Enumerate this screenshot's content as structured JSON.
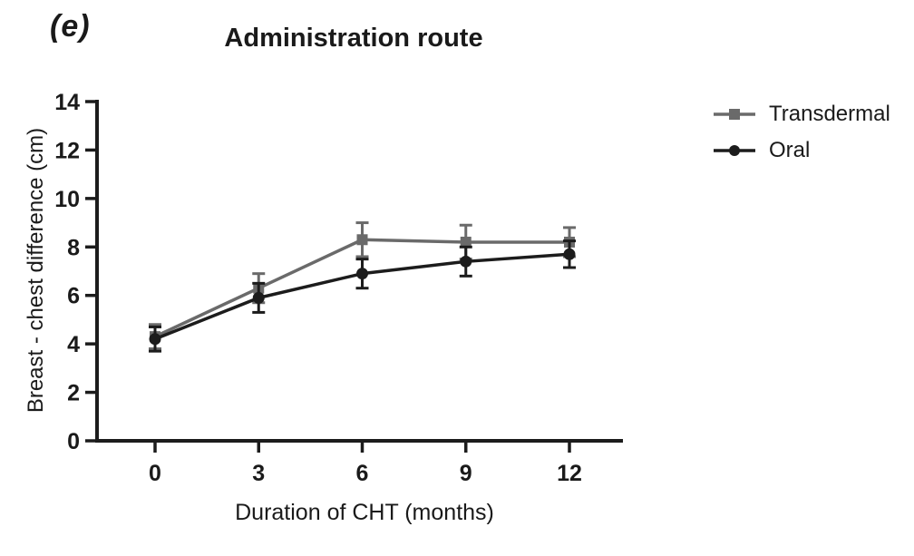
{
  "figure": {
    "panel_label": "(e)"
  },
  "chart_data": {
    "type": "line",
    "title": "Administration route",
    "xlabel": "Duration of CHT (months)",
    "ylabel": "Breast - chest difference (cm)",
    "x": [
      0,
      3,
      6,
      9,
      12
    ],
    "xticks": [
      0,
      3,
      6,
      9,
      12
    ],
    "yticks": [
      0,
      2,
      4,
      6,
      8,
      10,
      12,
      14
    ],
    "xlim": [
      0,
      12
    ],
    "ylim": [
      0,
      14
    ],
    "grid": false,
    "legend_position": "right",
    "error_bars": true,
    "axis_color": "#1c1c1c",
    "series": [
      {
        "name": "Transdermal",
        "marker": "square",
        "color": "#6a6a6a",
        "values": [
          4.3,
          6.3,
          8.3,
          8.2,
          8.2
        ],
        "errors": [
          0.5,
          0.6,
          0.7,
          0.7,
          0.6
        ]
      },
      {
        "name": "Oral",
        "marker": "circle",
        "color": "#1c1c1c",
        "values": [
          4.2,
          5.9,
          6.9,
          7.4,
          7.7
        ],
        "errors": [
          0.5,
          0.6,
          0.6,
          0.6,
          0.55
        ]
      }
    ]
  }
}
